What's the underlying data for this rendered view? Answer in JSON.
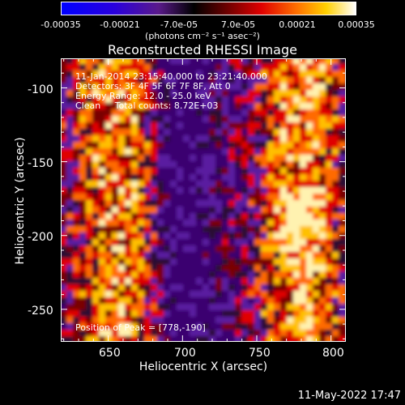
{
  "colorbar": {
    "ticks": [
      "-0.00035",
      "-0.00021",
      "-7.0e-05",
      "7.0e-05",
      "0.00021",
      "0.00035"
    ],
    "units": "(photons cm⁻² s⁻¹ asec⁻²)",
    "colors": [
      "#0000ff",
      "#3300cc",
      "#5a1a8a",
      "#000000",
      "#800000",
      "#ff0000",
      "#ff8000",
      "#ffd000",
      "#ffffff"
    ]
  },
  "chart_data": {
    "type": "heatmap",
    "title": "Reconstructed RHESSI Image",
    "xlabel": "Heliocentric X (arcsec)",
    "ylabel": "Heliocentric Y (arcsec)",
    "xlim": [
      618,
      810
    ],
    "ylim": [
      -272,
      -80
    ],
    "xticks": [
      "650",
      "700",
      "750",
      "800"
    ],
    "yticks": [
      "-100",
      "-150",
      "-200",
      "-250"
    ],
    "peak": [
      778,
      -190
    ],
    "annotations": [
      "11-Jan-2014 23:15:40.000 to 23:21:40.000",
      "Detectors: 3F 4F 5F 6F 7F 8F, Att 0",
      "Energy Range: 12.0 - 25.0 keV",
      "Clean     Total counts: 8.72E+03"
    ],
    "peak_label": "Position of Peak = [778,-190]"
  },
  "footer": {
    "timestamp": "11-May-2022 17:47"
  }
}
